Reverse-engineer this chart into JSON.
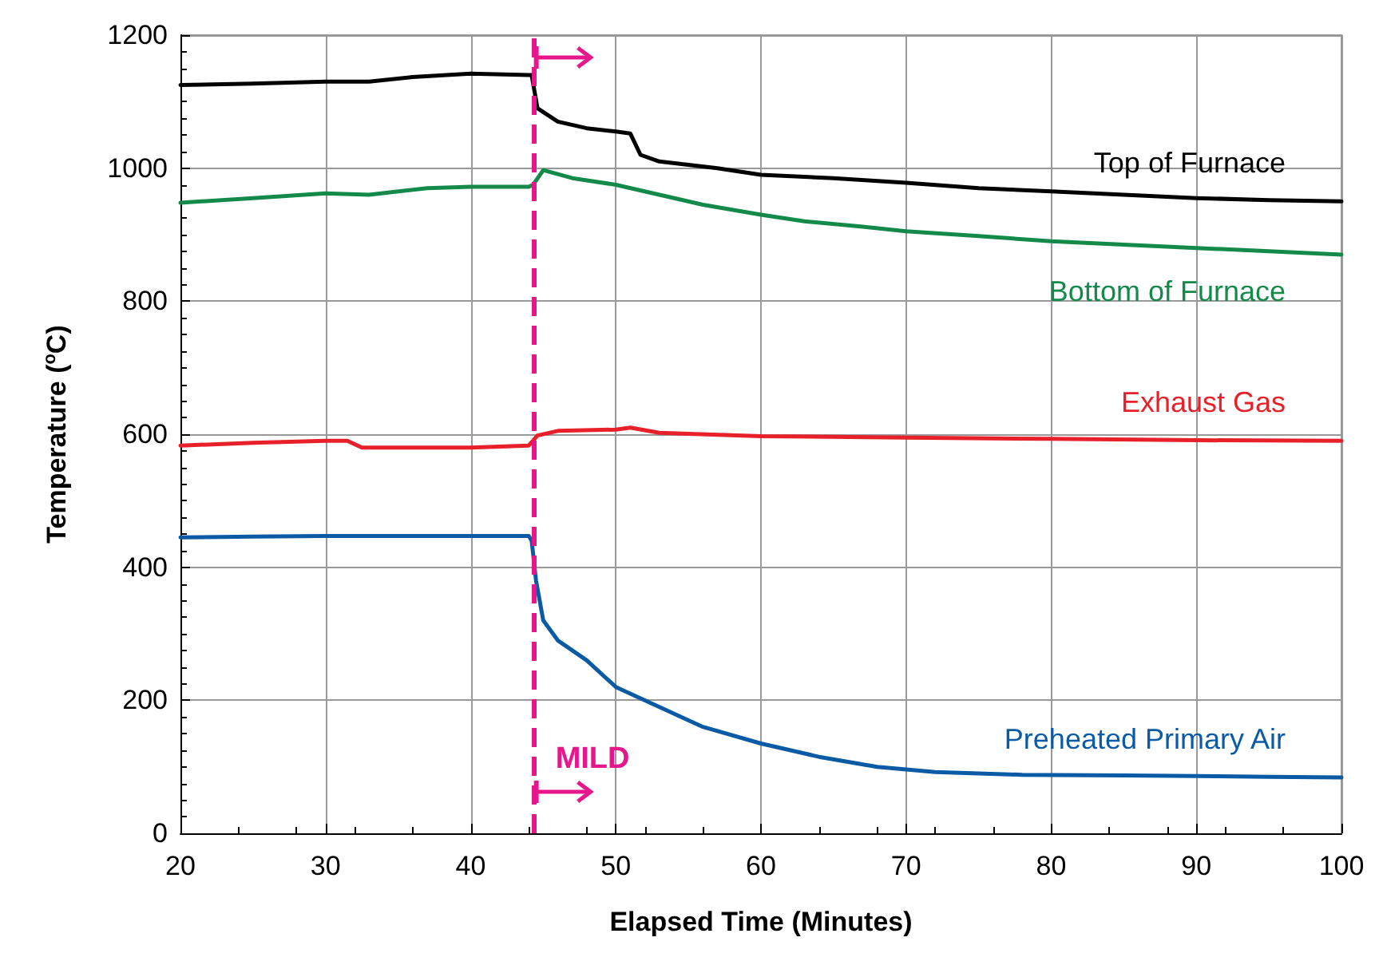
{
  "chart_data": {
    "type": "line",
    "xlabel": "Elapsed Time (Minutes)",
    "ylabel": "Temperature ($^{o}$C)",
    "xlim": [
      20,
      100
    ],
    "xticks": [
      20,
      30,
      40,
      50,
      60,
      70,
      80,
      90,
      100
    ],
    "ylim": [
      0,
      1200
    ],
    "yticks": [
      0,
      200,
      400,
      600,
      800,
      1000,
      1200
    ],
    "grid": true,
    "legend": false,
    "marker": "none",
    "line_style": "solid",
    "ref_lines": [
      {
        "axis": "x",
        "value": 44.3,
        "label": "MILD",
        "color": "#e6178a",
        "line_style": "dashed"
      }
    ],
    "series": [
      {
        "name": "Top of Furnace",
        "color": "#000000",
        "x": [
          20,
          25,
          30,
          33,
          36,
          40,
          44,
          44.2,
          44.6,
          46,
          48,
          50,
          51,
          51.7,
          53,
          57,
          60,
          65,
          70,
          75,
          80,
          85,
          90,
          95,
          100
        ],
        "values": [
          1125,
          1127,
          1130,
          1130,
          1137,
          1142,
          1140,
          1140,
          1090,
          1070,
          1060,
          1055,
          1052,
          1020,
          1010,
          1000,
          990,
          985,
          978,
          970,
          965,
          960,
          955,
          952,
          950
        ]
      },
      {
        "name": "Bottom of Furnace",
        "color": "#138a4a",
        "x": [
          20,
          25,
          30,
          33,
          37,
          40,
          44,
          44.3,
          45,
          47,
          50,
          53,
          56,
          60,
          63,
          67,
          70,
          75,
          80,
          85,
          90,
          95,
          100
        ],
        "values": [
          948,
          955,
          962,
          960,
          970,
          972,
          972,
          975,
          997,
          985,
          975,
          960,
          945,
          930,
          920,
          912,
          905,
          898,
          890,
          885,
          880,
          875,
          870
        ]
      },
      {
        "name": "Exhaust Gas",
        "color": "#e8202a",
        "x": [
          20,
          25,
          30,
          31.5,
          32.5,
          36,
          40,
          44,
          44.6,
          46,
          50,
          51,
          53,
          60,
          70,
          80,
          90,
          100
        ],
        "values": [
          583,
          587,
          590,
          590,
          580,
          580,
          580,
          583,
          598,
          605,
          607,
          610,
          602,
          597,
          595,
          593,
          591,
          590
        ]
      },
      {
        "name": "Preheated Primary Air",
        "color": "#0b5aa6",
        "x": [
          20,
          25,
          30,
          40,
          44,
          44.2,
          44.5,
          45,
          46,
          48,
          50,
          53,
          56,
          60,
          64,
          68,
          72,
          78,
          85,
          90,
          95,
          100
        ],
        "values": [
          445,
          446,
          447,
          447,
          447,
          440,
          380,
          320,
          290,
          260,
          220,
          190,
          160,
          135,
          115,
          100,
          92,
          88,
          87,
          86,
          85,
          84
        ]
      }
    ]
  }
}
